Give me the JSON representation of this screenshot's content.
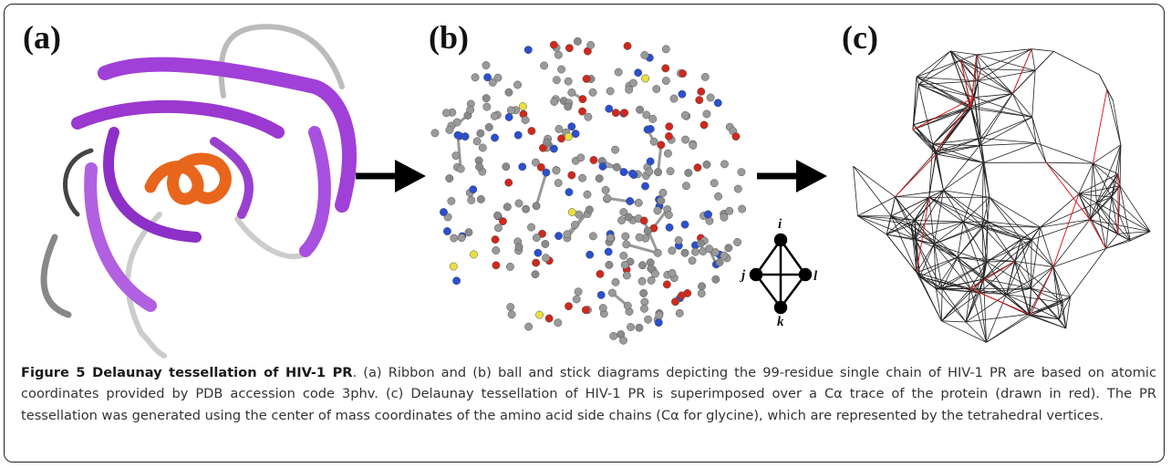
{
  "panels": [
    {
      "label": "(a)"
    },
    {
      "label": "(b)"
    },
    {
      "label": "(c)"
    }
  ],
  "diagram": {
    "vertices": [
      "i",
      "j",
      "k",
      "l"
    ]
  },
  "caption": {
    "title": "Figure 5 Delaunay tessellation of HIV-1 PR",
    "text": ". (a) Ribbon and (b) ball and stick diagrams depicting the 99-residue single chain of HIV-1 PR are based on atomic coordinates provided by PDB accession code 3phv. (c) Delaunay tessellation of HIV-1 PR is superimposed over a Cα trace of the protein (drawn in red). The PR tessellation was generated using the center of mass coordinates of the amino acid side chains (Cα for glycine), which are represented by the tetrahedral vertices."
  }
}
